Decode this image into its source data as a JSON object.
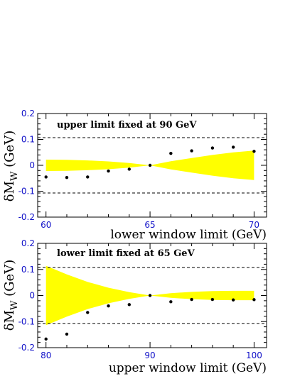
{
  "colors": {
    "band": "#ffff00",
    "points": "#000000",
    "ticks": "#1010c8",
    "frame": "#000000"
  },
  "chart_data": [
    {
      "type": "scatter",
      "annotation": "upper limit fixed at 90 GeV",
      "xlabel": "lower window limit (GeV)",
      "ylabel_main": "δM",
      "ylabel_sub": "W",
      "ylabel_unit": " (GeV)",
      "xlim": [
        59.6,
        70.6
      ],
      "ylim": [
        -0.2,
        0.2
      ],
      "xticks": [
        60,
        65,
        70
      ],
      "xtick_labels": [
        "60",
        "65",
        "70"
      ],
      "yticks": [
        -0.2,
        -0.1,
        0,
        0.1,
        0.2
      ],
      "ytick_labels": [
        "-0.2",
        "-0.1",
        "0",
        "0.1",
        "0.2"
      ],
      "reference_lines": [
        0.107,
        -0.107
      ],
      "band": {
        "x": [
          60,
          61,
          62,
          63,
          64,
          65,
          66,
          67,
          68,
          69,
          70
        ],
        "upper": [
          0.022,
          0.021,
          0.019,
          0.015,
          0.009,
          0.0,
          0.016,
          0.028,
          0.04,
          0.05,
          0.057
        ],
        "lower": [
          -0.022,
          -0.021,
          -0.019,
          -0.015,
          -0.009,
          0.0,
          -0.016,
          -0.028,
          -0.04,
          -0.05,
          -0.057
        ]
      },
      "points": {
        "x": [
          60,
          61,
          62,
          63,
          64,
          65,
          66,
          67,
          68,
          69,
          70
        ],
        "y": [
          -0.045,
          -0.047,
          -0.045,
          -0.022,
          -0.015,
          0.0,
          0.046,
          0.056,
          0.067,
          0.07,
          0.054
        ]
      }
    },
    {
      "type": "scatter",
      "annotation": "lower limit fixed at 65 GeV",
      "xlabel": "upper window limit (GeV)",
      "ylabel_main": "δM",
      "ylabel_sub": "W",
      "ylabel_unit": " (GeV)",
      "xlim": [
        79.2,
        101.2
      ],
      "ylim": [
        -0.2,
        0.2
      ],
      "xticks": [
        80,
        90,
        100
      ],
      "xtick_labels": [
        "80",
        "90",
        "100"
      ],
      "yticks": [
        -0.2,
        -0.1,
        0,
        0.1,
        0.2
      ],
      "ytick_labels": [
        "-0.2",
        "-0.1",
        "0",
        "0.1",
        "0.2"
      ],
      "reference_lines": [
        0.107,
        -0.107
      ],
      "band": {
        "x": [
          80,
          82,
          84,
          86,
          88,
          90,
          92,
          94,
          96,
          98,
          100
        ],
        "upper": [
          0.114,
          0.081,
          0.052,
          0.03,
          0.013,
          0.0,
          0.009,
          0.014,
          0.017,
          0.018,
          0.018
        ],
        "lower": [
          -0.114,
          -0.081,
          -0.052,
          -0.03,
          -0.013,
          0.0,
          -0.009,
          -0.014,
          -0.017,
          -0.018,
          -0.018
        ]
      },
      "points": {
        "x": [
          80,
          82,
          84,
          86,
          88,
          90,
          92,
          94,
          96,
          98,
          100
        ],
        "y": [
          -0.167,
          -0.148,
          -0.065,
          -0.04,
          -0.035,
          0.0,
          -0.024,
          -0.015,
          -0.015,
          -0.017,
          -0.016
        ]
      }
    }
  ]
}
